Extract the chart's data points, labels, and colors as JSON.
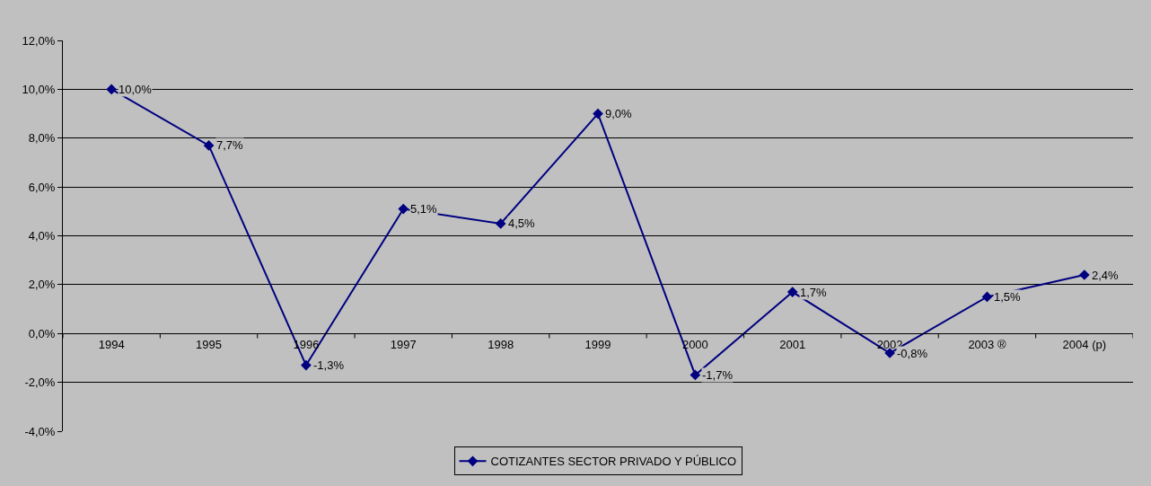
{
  "chart_data": {
    "type": "line",
    "categories": [
      "1994",
      "1995",
      "1996",
      "1997",
      "1998",
      "1999",
      "2000",
      "2001",
      "2002",
      "2003 ®",
      "2004 (p)"
    ],
    "series": [
      {
        "name": "COTIZANTES SECTOR PRIVADO Y PÚBLICO",
        "color": "#000080",
        "values": [
          10.0,
          7.7,
          -1.3,
          5.1,
          4.5,
          9.0,
          -1.7,
          1.7,
          -0.8,
          1.5,
          2.4
        ],
        "value_labels": [
          "10,0%",
          "7,7%",
          "-1,3%",
          "5,1%",
          "4,5%",
          "9,0%",
          "-1,7%",
          "1,7%",
          "-0,8%",
          "1,5%",
          "2,4%"
        ]
      }
    ],
    "ylim": [
      -4,
      12
    ],
    "yticks": [
      {
        "value": -4,
        "label": "-4,0%"
      },
      {
        "value": -2,
        "label": "-2,0%"
      },
      {
        "value": 0,
        "label": "0,0%"
      },
      {
        "value": 2,
        "label": "2,0%"
      },
      {
        "value": 4,
        "label": "4,0%"
      },
      {
        "value": 6,
        "label": "6,0%"
      },
      {
        "value": 8,
        "label": "8,0%"
      },
      {
        "value": 10,
        "label": "10,0%"
      },
      {
        "value": 12,
        "label": "12,0%"
      }
    ],
    "grid": "y",
    "legend": "bottom",
    "marker": "diamond",
    "line_style": "solid"
  }
}
